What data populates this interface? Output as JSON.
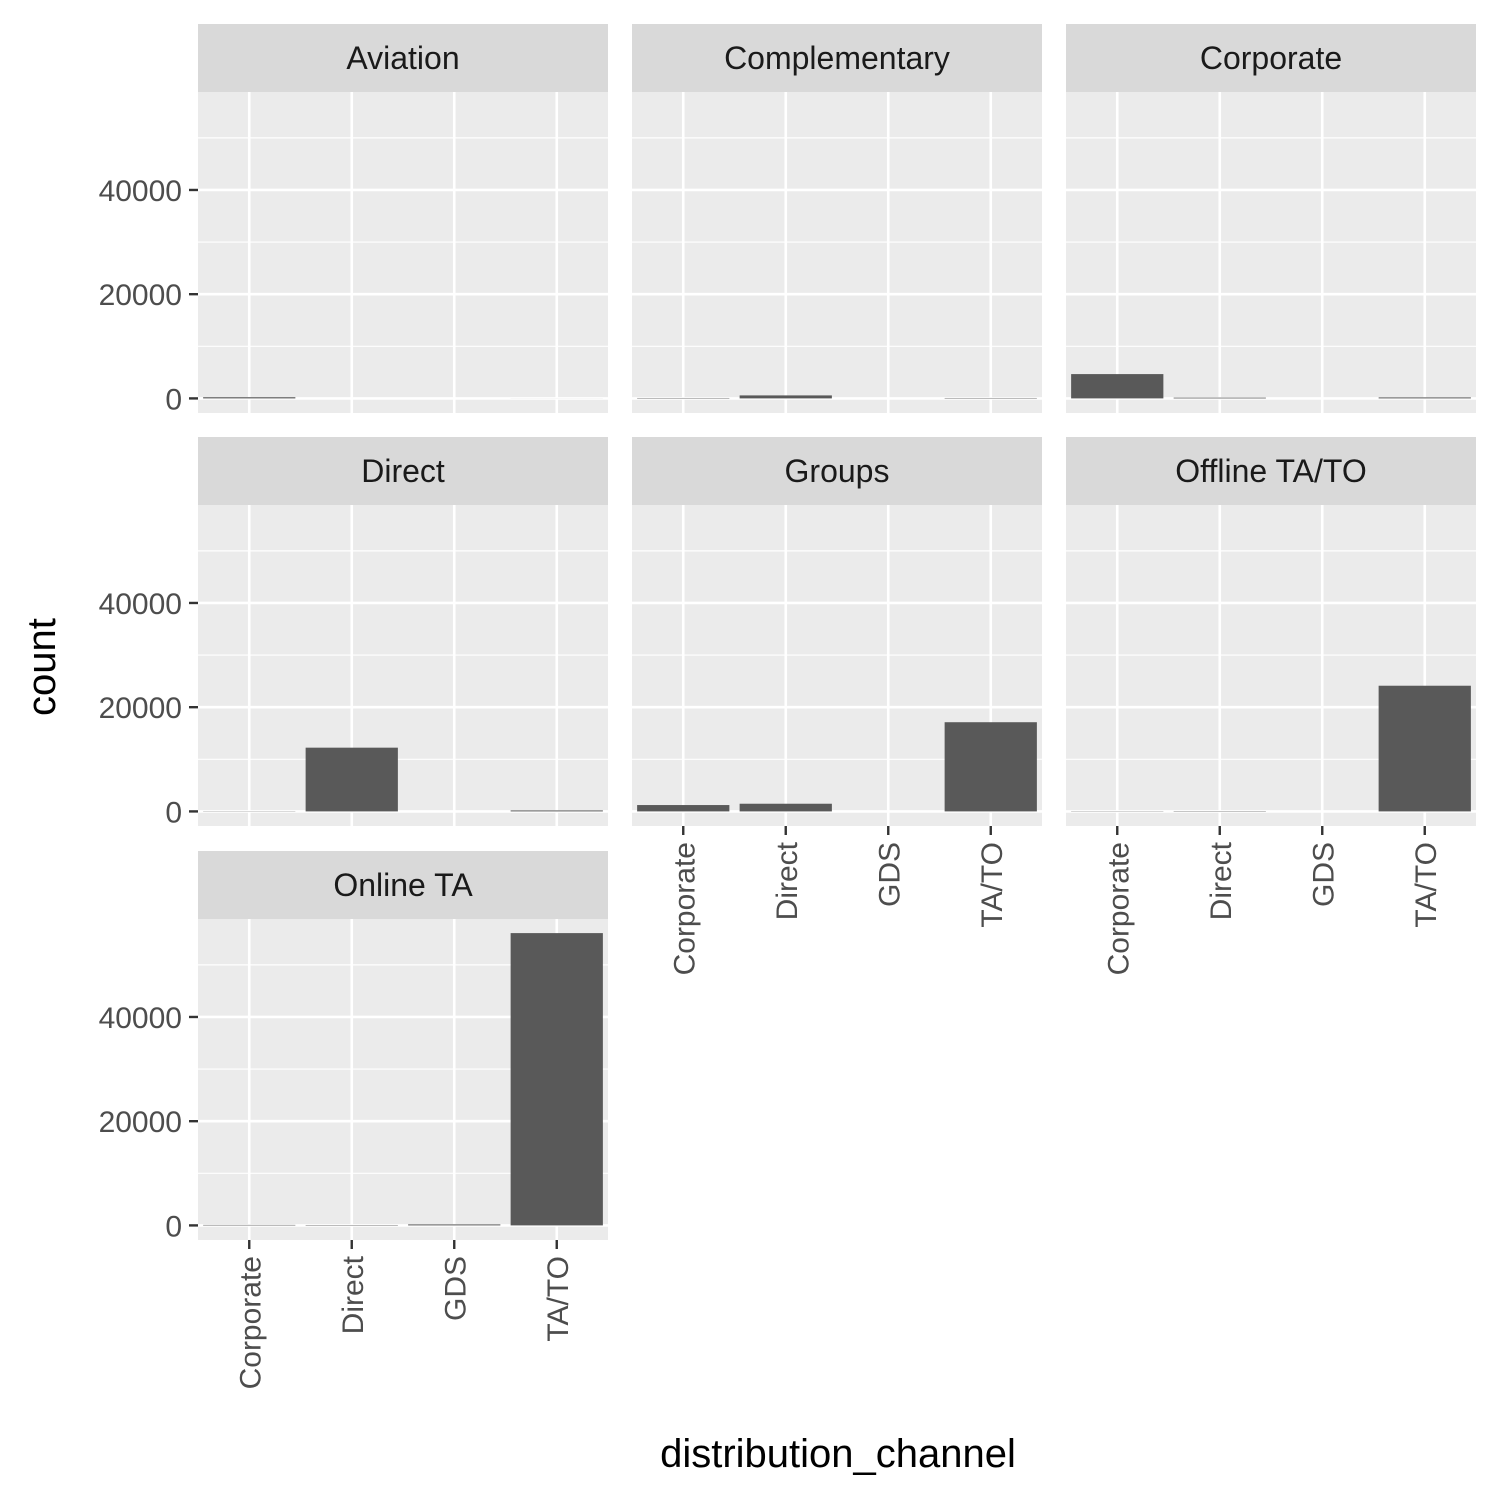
{
  "chart_data": {
    "type": "bar",
    "xlabel": "distribution_channel",
    "ylabel": "count",
    "ylim": [
      -2800,
      58800
    ],
    "y_ticks": [
      0,
      20000,
      40000
    ],
    "y_tick_labels": [
      "0",
      "20000",
      "40000"
    ],
    "categories": [
      "Corporate",
      "Direct",
      "GDS",
      "TA/TO"
    ],
    "grid": true,
    "bar_color": "#595959",
    "panel_bg": "#EBEBEB",
    "strip_bg": "#D9D9D9",
    "grid_color": "#FFFFFF",
    "facets": [
      {
        "name": "Aviation",
        "values": [
          227,
          0,
          0,
          8
        ]
      },
      {
        "name": "Complementary",
        "values": [
          84,
          576,
          0,
          83
        ]
      },
      {
        "name": "Corporate",
        "values": [
          4666,
          144,
          0,
          192
        ]
      },
      {
        "name": "Direct",
        "values": [
          42,
          12232,
          0,
          189
        ]
      },
      {
        "name": "Groups",
        "values": [
          1221,
          1472,
          0,
          17117
        ]
      },
      {
        "name": "Offline TA/TO",
        "values": [
          48,
          67,
          0,
          24118
        ]
      },
      {
        "name": "Online TA",
        "values": [
          97,
          80,
          193,
          56094
        ]
      }
    ]
  }
}
